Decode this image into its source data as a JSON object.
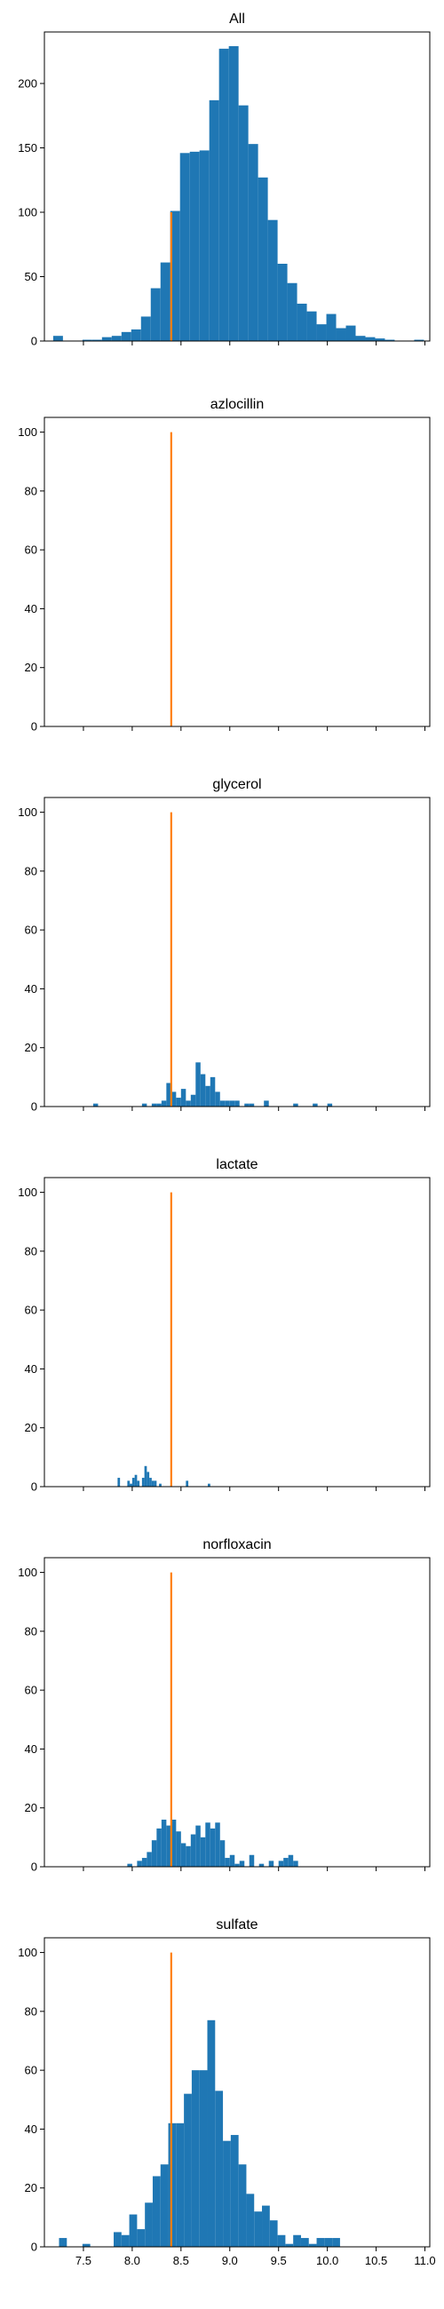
{
  "chart_data": [
    {
      "type": "bar",
      "title": "All",
      "xlim": [
        7.1,
        11.05
      ],
      "ylim": [
        0,
        240
      ],
      "yticks": [
        0,
        50,
        100,
        150,
        200
      ],
      "xticks": [
        7.5,
        8.0,
        8.5,
        9.0,
        9.5,
        10.0,
        10.5,
        11.0
      ],
      "show_xtick_labels": false,
      "bar_color": "#1f77b4",
      "bar_edges": [
        7.19,
        7.29,
        7.39,
        7.49,
        7.59,
        7.69,
        7.79,
        7.89,
        7.99,
        8.09,
        8.19,
        8.29,
        8.39,
        8.49,
        8.59,
        8.69,
        8.79,
        8.89,
        8.99,
        9.09,
        9.19,
        9.29,
        9.39,
        9.49,
        9.59,
        9.69,
        9.79,
        9.89,
        9.99,
        10.09,
        10.19,
        10.29,
        10.39,
        10.49,
        10.59,
        10.69,
        10.79,
        10.89,
        10.99
      ],
      "bar_values": [
        4,
        0,
        0,
        1,
        1,
        3,
        4,
        7,
        9,
        19,
        41,
        61,
        101,
        146,
        147,
        148,
        187,
        227,
        229,
        183,
        153,
        127,
        94,
        60,
        45,
        29,
        23,
        13,
        21,
        10,
        12,
        4,
        3,
        2,
        1,
        0,
        0,
        1
      ],
      "marker": {
        "x": 8.4,
        "y_top": 100,
        "color": "#ff7f0e"
      }
    },
    {
      "type": "bar",
      "title": "azlocillin",
      "xlim": [
        7.1,
        11.05
      ],
      "ylim": [
        0,
        105
      ],
      "yticks": [
        0,
        20,
        40,
        60,
        80,
        100
      ],
      "xticks": [
        7.5,
        8.0,
        8.5,
        9.0,
        9.5,
        10.0,
        10.5,
        11.0
      ],
      "show_xtick_labels": false,
      "bar_color": "#1f77b4",
      "bar_edges": [],
      "bar_values": [],
      "marker": {
        "x": 8.4,
        "y_top": 100,
        "color": "#ff7f0e"
      }
    },
    {
      "type": "bar",
      "title": "glycerol",
      "xlim": [
        7.1,
        11.05
      ],
      "ylim": [
        0,
        105
      ],
      "yticks": [
        0,
        20,
        40,
        60,
        80,
        100
      ],
      "xticks": [
        7.5,
        8.0,
        8.5,
        9.0,
        9.5,
        10.0,
        10.5,
        11.0
      ],
      "show_xtick_labels": false,
      "bar_color": "#1f77b4",
      "bar_edges": [
        7.6,
        7.65,
        7.7,
        7.75,
        7.8,
        7.85,
        7.9,
        7.95,
        8.0,
        8.05,
        8.1,
        8.15,
        8.2,
        8.25,
        8.3,
        8.35,
        8.4,
        8.45,
        8.5,
        8.55,
        8.6,
        8.65,
        8.7,
        8.75,
        8.8,
        8.85,
        8.9,
        8.95,
        9.0,
        9.05,
        9.1,
        9.15,
        9.2,
        9.25,
        9.3,
        9.35,
        9.4,
        9.45,
        9.5,
        9.55,
        9.6,
        9.65,
        9.7,
        9.75,
        9.8,
        9.85,
        9.9,
        9.95,
        10.0,
        10.05,
        10.1
      ],
      "bar_values": [
        1,
        0,
        0,
        0,
        0,
        0,
        0,
        0,
        0,
        0,
        1,
        0,
        1,
        1,
        2,
        8,
        5,
        3,
        6,
        2,
        4,
        15,
        11,
        7,
        10,
        5,
        2,
        2,
        2,
        2,
        0,
        1,
        1,
        0,
        0,
        2,
        0,
        0,
        0,
        0,
        0,
        1,
        0,
        0,
        0,
        1,
        0,
        0,
        1,
        0
      ],
      "marker": {
        "x": 8.4,
        "y_top": 100,
        "color": "#ff7f0e"
      }
    },
    {
      "type": "bar",
      "title": "lactate",
      "xlim": [
        7.1,
        11.05
      ],
      "ylim": [
        0,
        105
      ],
      "yticks": [
        0,
        20,
        40,
        60,
        80,
        100
      ],
      "xticks": [
        7.5,
        8.0,
        8.5,
        9.0,
        9.5,
        10.0,
        10.5,
        11.0
      ],
      "show_xtick_labels": false,
      "bar_color": "#1f77b4",
      "bar_edges": [
        7.85,
        7.875,
        7.9,
        7.925,
        7.95,
        7.975,
        8.0,
        8.025,
        8.05,
        8.075,
        8.1,
        8.125,
        8.15,
        8.175,
        8.2,
        8.225,
        8.25,
        8.275,
        8.3,
        8.325,
        8.35,
        8.375,
        8.4,
        8.425,
        8.45,
        8.475,
        8.5,
        8.525,
        8.55,
        8.575,
        8.6,
        8.625,
        8.65,
        8.675,
        8.7,
        8.725,
        8.75,
        8.775,
        8.8
      ],
      "bar_values": [
        3,
        0,
        0,
        0,
        2,
        1,
        3,
        4,
        2,
        0,
        3,
        7,
        5,
        3,
        2,
        2,
        0,
        1,
        0,
        0,
        0,
        0,
        0,
        0,
        0,
        0,
        0,
        0,
        2,
        0,
        0,
        0,
        0,
        0,
        0,
        0,
        0,
        1
      ],
      "marker": {
        "x": 8.4,
        "y_top": 100,
        "color": "#ff7f0e"
      }
    },
    {
      "type": "bar",
      "title": "norfloxacin",
      "xlim": [
        7.1,
        11.05
      ],
      "ylim": [
        0,
        105
      ],
      "yticks": [
        0,
        20,
        40,
        60,
        80,
        100
      ],
      "xticks": [
        7.5,
        8.0,
        8.5,
        9.0,
        9.5,
        10.0,
        10.5,
        11.0
      ],
      "show_xtick_labels": false,
      "bar_color": "#1f77b4",
      "bar_edges": [
        7.95,
        8.0,
        8.05,
        8.1,
        8.15,
        8.2,
        8.25,
        8.3,
        8.35,
        8.4,
        8.45,
        8.5,
        8.55,
        8.6,
        8.65,
        8.7,
        8.75,
        8.8,
        8.85,
        8.9,
        8.95,
        9.0,
        9.05,
        9.1,
        9.15,
        9.2,
        9.25,
        9.3,
        9.35,
        9.4,
        9.45,
        9.5,
        9.55,
        9.6,
        9.65,
        9.7,
        9.75
      ],
      "bar_values": [
        1,
        0,
        2,
        3,
        5,
        9,
        13,
        16,
        14,
        16,
        12,
        8,
        7,
        11,
        14,
        10,
        15,
        13,
        15,
        9,
        3,
        4,
        1,
        2,
        0,
        4,
        0,
        1,
        0,
        2,
        0,
        2,
        3,
        4,
        2,
        0
      ],
      "marker": {
        "x": 8.4,
        "y_top": 100,
        "color": "#ff7f0e"
      }
    },
    {
      "type": "bar",
      "title": "sulfate",
      "xlim": [
        7.1,
        11.05
      ],
      "ylim": [
        0,
        105
      ],
      "yticks": [
        0,
        20,
        40,
        60,
        80,
        100
      ],
      "xticks": [
        7.5,
        8.0,
        8.5,
        9.0,
        9.5,
        10.0,
        10.5,
        11.0
      ],
      "xtick_labels": [
        "7.5",
        "8.0",
        "8.5",
        "9.0",
        "9.5",
        "10.0",
        "10.5",
        "11.0"
      ],
      "show_xtick_labels": true,
      "bar_color": "#1f77b4",
      "bar_edges": [
        7.25,
        7.33,
        7.41,
        7.49,
        7.57,
        7.65,
        7.73,
        7.81,
        7.89,
        7.97,
        8.05,
        8.13,
        8.21,
        8.29,
        8.37,
        8.45,
        8.53,
        8.61,
        8.69,
        8.77,
        8.85,
        8.93,
        9.01,
        9.09,
        9.17,
        9.25,
        9.33,
        9.41,
        9.49,
        9.57,
        9.65,
        9.73,
        9.81,
        9.89,
        9.97,
        10.05,
        10.13
      ],
      "bar_values": [
        3,
        0,
        0,
        1,
        0,
        0,
        0,
        5,
        4,
        11,
        6,
        15,
        24,
        28,
        42,
        42,
        52,
        60,
        60,
        77,
        53,
        36,
        38,
        28,
        18,
        12,
        14,
        9,
        4,
        1,
        4,
        3,
        1,
        3,
        3,
        3
      ],
      "marker": {
        "x": 8.4,
        "y_top": 100,
        "color": "#ff7f0e"
      }
    }
  ]
}
